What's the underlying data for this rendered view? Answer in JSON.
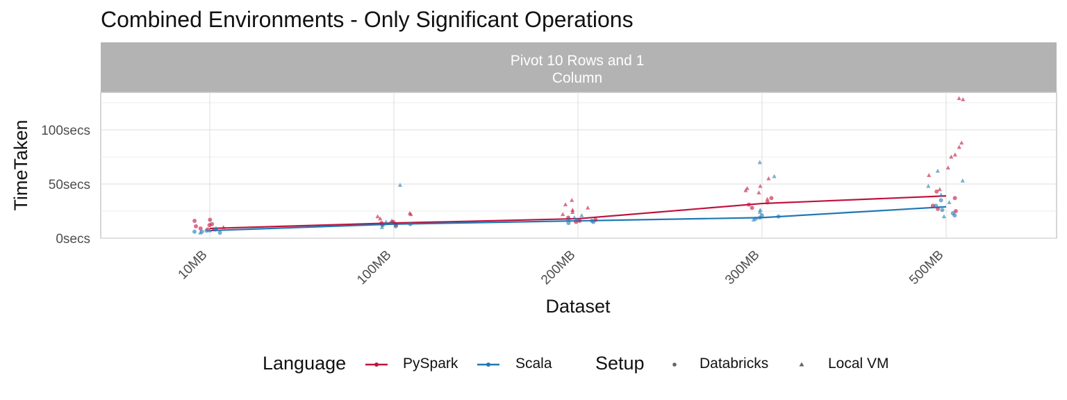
{
  "title": "Combined Environments - Only Significant Operations",
  "chart_data": {
    "type": "scatter",
    "title": "Combined Environments - Only Significant Operations",
    "facet_label": "Pivot 10 Rows and 1\nColumn",
    "xlabel": "Dataset",
    "ylabel": "TimeTaken",
    "categories": [
      "10MB",
      "100MB",
      "200MB",
      "300MB",
      "500MB"
    ],
    "y_ticks": [
      0,
      50,
      100
    ],
    "y_tick_labels": [
      "0secs",
      "50secs",
      "100secs"
    ],
    "ylim": [
      0,
      130
    ],
    "grid": true,
    "legend_position": "bottom",
    "colors": {
      "PySpark": "#c0123c",
      "Scala": "#1f78b4"
    },
    "lines": [
      {
        "name": "PySpark",
        "values": [
          9,
          14,
          18,
          32,
          39
        ]
      },
      {
        "name": "Scala",
        "values": [
          7,
          13,
          16,
          19,
          29
        ]
      }
    ],
    "points": [
      {
        "x": "10MB",
        "y": 12,
        "language": "PySpark",
        "setup": "Databricks"
      },
      {
        "x": "10MB",
        "y": 13,
        "language": "PySpark",
        "setup": "Databricks"
      },
      {
        "x": "10MB",
        "y": 11,
        "language": "PySpark",
        "setup": "Databricks"
      },
      {
        "x": "10MB",
        "y": 9,
        "language": "PySpark",
        "setup": "Databricks"
      },
      {
        "x": "10MB",
        "y": 8,
        "language": "PySpark",
        "setup": "Databricks"
      },
      {
        "x": "10MB",
        "y": 17,
        "language": "PySpark",
        "setup": "Databricks"
      },
      {
        "x": "10MB",
        "y": 16,
        "language": "PySpark",
        "setup": "Databricks"
      },
      {
        "x": "10MB",
        "y": 10,
        "language": "PySpark",
        "setup": "Local VM"
      },
      {
        "x": "10MB",
        "y": 8,
        "language": "PySpark",
        "setup": "Local VM"
      },
      {
        "x": "10MB",
        "y": 7,
        "language": "Scala",
        "setup": "Databricks"
      },
      {
        "x": "10MB",
        "y": 6,
        "language": "Scala",
        "setup": "Databricks"
      },
      {
        "x": "10MB",
        "y": 5,
        "language": "Scala",
        "setup": "Databricks"
      },
      {
        "x": "10MB",
        "y": 8,
        "language": "Scala",
        "setup": "Databricks"
      },
      {
        "x": "10MB",
        "y": 6,
        "language": "Scala",
        "setup": "Databricks"
      },
      {
        "x": "10MB",
        "y": 7,
        "language": "Scala",
        "setup": "Local VM"
      },
      {
        "x": "10MB",
        "y": 5,
        "language": "Scala",
        "setup": "Local VM"
      },
      {
        "x": "10MB",
        "y": 9,
        "language": "Scala",
        "setup": "Local VM"
      },
      {
        "x": "100MB",
        "y": 14,
        "language": "PySpark",
        "setup": "Databricks"
      },
      {
        "x": "100MB",
        "y": 12,
        "language": "PySpark",
        "setup": "Databricks"
      },
      {
        "x": "100MB",
        "y": 15,
        "language": "PySpark",
        "setup": "Databricks"
      },
      {
        "x": "100MB",
        "y": 13,
        "language": "PySpark",
        "setup": "Databricks"
      },
      {
        "x": "100MB",
        "y": 20,
        "language": "PySpark",
        "setup": "Local VM"
      },
      {
        "x": "100MB",
        "y": 23,
        "language": "PySpark",
        "setup": "Local VM"
      },
      {
        "x": "100MB",
        "y": 22,
        "language": "PySpark",
        "setup": "Local VM"
      },
      {
        "x": "100MB",
        "y": 18,
        "language": "PySpark",
        "setup": "Local VM"
      },
      {
        "x": "100MB",
        "y": 16,
        "language": "PySpark",
        "setup": "Local VM"
      },
      {
        "x": "100MB",
        "y": 13,
        "language": "Scala",
        "setup": "Databricks"
      },
      {
        "x": "100MB",
        "y": 12,
        "language": "Scala",
        "setup": "Databricks"
      },
      {
        "x": "100MB",
        "y": 14,
        "language": "Scala",
        "setup": "Databricks"
      },
      {
        "x": "100MB",
        "y": 11,
        "language": "Scala",
        "setup": "Databricks"
      },
      {
        "x": "100MB",
        "y": 49,
        "language": "Scala",
        "setup": "Local VM"
      },
      {
        "x": "100MB",
        "y": 15,
        "language": "Scala",
        "setup": "Local VM"
      },
      {
        "x": "100MB",
        "y": 10,
        "language": "Scala",
        "setup": "Local VM"
      },
      {
        "x": "200MB",
        "y": 17,
        "language": "PySpark",
        "setup": "Databricks"
      },
      {
        "x": "200MB",
        "y": 15,
        "language": "PySpark",
        "setup": "Databricks"
      },
      {
        "x": "200MB",
        "y": 19,
        "language": "PySpark",
        "setup": "Databricks"
      },
      {
        "x": "200MB",
        "y": 16,
        "language": "PySpark",
        "setup": "Databricks"
      },
      {
        "x": "200MB",
        "y": 35,
        "language": "PySpark",
        "setup": "Local VM"
      },
      {
        "x": "200MB",
        "y": 31,
        "language": "PySpark",
        "setup": "Local VM"
      },
      {
        "x": "200MB",
        "y": 28,
        "language": "PySpark",
        "setup": "Local VM"
      },
      {
        "x": "200MB",
        "y": 26,
        "language": "PySpark",
        "setup": "Local VM"
      },
      {
        "x": "200MB",
        "y": 24,
        "language": "PySpark",
        "setup": "Local VM"
      },
      {
        "x": "200MB",
        "y": 22,
        "language": "PySpark",
        "setup": "Local VM"
      },
      {
        "x": "200MB",
        "y": 15,
        "language": "Scala",
        "setup": "Databricks"
      },
      {
        "x": "200MB",
        "y": 14,
        "language": "Scala",
        "setup": "Databricks"
      },
      {
        "x": "200MB",
        "y": 16,
        "language": "Scala",
        "setup": "Databricks"
      },
      {
        "x": "200MB",
        "y": 17,
        "language": "Scala",
        "setup": "Databricks"
      },
      {
        "x": "200MB",
        "y": 18,
        "language": "Scala",
        "setup": "Local VM"
      },
      {
        "x": "200MB",
        "y": 21,
        "language": "Scala",
        "setup": "Local VM"
      },
      {
        "x": "200MB",
        "y": 19,
        "language": "Scala",
        "setup": "Local VM"
      },
      {
        "x": "300MB",
        "y": 37,
        "language": "PySpark",
        "setup": "Databricks"
      },
      {
        "x": "300MB",
        "y": 33,
        "language": "PySpark",
        "setup": "Databricks"
      },
      {
        "x": "300MB",
        "y": 31,
        "language": "PySpark",
        "setup": "Databricks"
      },
      {
        "x": "300MB",
        "y": 28,
        "language": "PySpark",
        "setup": "Databricks"
      },
      {
        "x": "300MB",
        "y": 48,
        "language": "PySpark",
        "setup": "Local VM"
      },
      {
        "x": "300MB",
        "y": 46,
        "language": "PySpark",
        "setup": "Local VM"
      },
      {
        "x": "300MB",
        "y": 44,
        "language": "PySpark",
        "setup": "Local VM"
      },
      {
        "x": "300MB",
        "y": 42,
        "language": "PySpark",
        "setup": "Local VM"
      },
      {
        "x": "300MB",
        "y": 55,
        "language": "PySpark",
        "setup": "Local VM"
      },
      {
        "x": "300MB",
        "y": 36,
        "language": "PySpark",
        "setup": "Local VM"
      },
      {
        "x": "300MB",
        "y": 20,
        "language": "Scala",
        "setup": "Databricks"
      },
      {
        "x": "300MB",
        "y": 18,
        "language": "Scala",
        "setup": "Databricks"
      },
      {
        "x": "300MB",
        "y": 19,
        "language": "Scala",
        "setup": "Databricks"
      },
      {
        "x": "300MB",
        "y": 21,
        "language": "Scala",
        "setup": "Databricks"
      },
      {
        "x": "300MB",
        "y": 70,
        "language": "Scala",
        "setup": "Local VM"
      },
      {
        "x": "300MB",
        "y": 57,
        "language": "Scala",
        "setup": "Local VM"
      },
      {
        "x": "300MB",
        "y": 26,
        "language": "Scala",
        "setup": "Local VM"
      },
      {
        "x": "300MB",
        "y": 24,
        "language": "Scala",
        "setup": "Local VM"
      },
      {
        "x": "300MB",
        "y": 17,
        "language": "Scala",
        "setup": "Local VM"
      },
      {
        "x": "500MB",
        "y": 43,
        "language": "PySpark",
        "setup": "Databricks"
      },
      {
        "x": "500MB",
        "y": 37,
        "language": "PySpark",
        "setup": "Databricks"
      },
      {
        "x": "500MB",
        "y": 30,
        "language": "PySpark",
        "setup": "Databricks"
      },
      {
        "x": "500MB",
        "y": 27,
        "language": "PySpark",
        "setup": "Databricks"
      },
      {
        "x": "500MB",
        "y": 25,
        "language": "PySpark",
        "setup": "Databricks"
      },
      {
        "x": "500MB",
        "y": 129,
        "language": "PySpark",
        "setup": "Local VM"
      },
      {
        "x": "500MB",
        "y": 128,
        "language": "PySpark",
        "setup": "Local VM"
      },
      {
        "x": "500MB",
        "y": 88,
        "language": "PySpark",
        "setup": "Local VM"
      },
      {
        "x": "500MB",
        "y": 84,
        "language": "PySpark",
        "setup": "Local VM"
      },
      {
        "x": "500MB",
        "y": 77,
        "language": "PySpark",
        "setup": "Local VM"
      },
      {
        "x": "500MB",
        "y": 75,
        "language": "PySpark",
        "setup": "Local VM"
      },
      {
        "x": "500MB",
        "y": 65,
        "language": "PySpark",
        "setup": "Local VM"
      },
      {
        "x": "500MB",
        "y": 58,
        "language": "PySpark",
        "setup": "Local VM"
      },
      {
        "x": "500MB",
        "y": 45,
        "language": "PySpark",
        "setup": "Local VM"
      },
      {
        "x": "500MB",
        "y": 35,
        "language": "Scala",
        "setup": "Databricks"
      },
      {
        "x": "500MB",
        "y": 30,
        "language": "Scala",
        "setup": "Databricks"
      },
      {
        "x": "500MB",
        "y": 26,
        "language": "Scala",
        "setup": "Databricks"
      },
      {
        "x": "500MB",
        "y": 23,
        "language": "Scala",
        "setup": "Databricks"
      },
      {
        "x": "500MB",
        "y": 21,
        "language": "Scala",
        "setup": "Databricks"
      },
      {
        "x": "500MB",
        "y": 62,
        "language": "Scala",
        "setup": "Local VM"
      },
      {
        "x": "500MB",
        "y": 53,
        "language": "Scala",
        "setup": "Local VM"
      },
      {
        "x": "500MB",
        "y": 48,
        "language": "Scala",
        "setup": "Local VM"
      },
      {
        "x": "500MB",
        "y": 40,
        "language": "Scala",
        "setup": "Local VM"
      },
      {
        "x": "500MB",
        "y": 33,
        "language": "Scala",
        "setup": "Local VM"
      },
      {
        "x": "500MB",
        "y": 20,
        "language": "Scala",
        "setup": "Local VM"
      }
    ]
  },
  "legend": {
    "language_title": "Language",
    "language_items": [
      "PySpark",
      "Scala"
    ],
    "setup_title": "Setup",
    "setup_items": [
      "Databricks",
      "Local VM"
    ]
  }
}
